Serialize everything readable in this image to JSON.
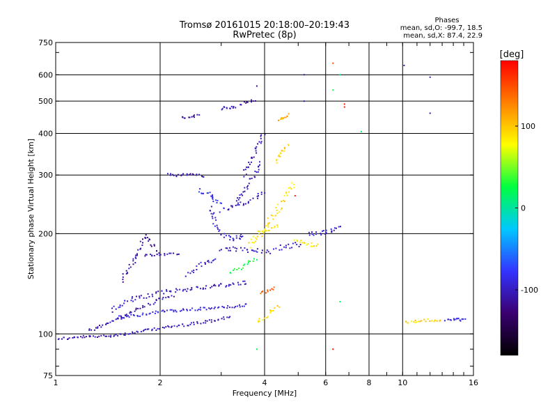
{
  "chart_data": {
    "type": "scatter",
    "title": "Tromsø 20161015 20:18:00–20:19:43",
    "subtitle": "RwPretec (8p)",
    "xlabel": "Frequency [MHz]",
    "ylabel": "Stationary phase Virtual Height [km]",
    "x_scale": "log",
    "y_scale": "log",
    "xlim": [
      1,
      16
    ],
    "ylim": [
      75,
      750
    ],
    "x_ticks": [
      1,
      2,
      4,
      6,
      8,
      10,
      16
    ],
    "x_tick_labels": [
      "1",
      "2",
      "4",
      "6",
      "8",
      "10",
      "16"
    ],
    "y_ticks": [
      75,
      100,
      200,
      300,
      400,
      500,
      600,
      750
    ],
    "y_tick_labels": [
      "75",
      "100",
      "200",
      "300",
      "400",
      "500",
      "600",
      "750"
    ],
    "grid": true,
    "phases_title": "Phases",
    "phase_stats": [
      "mean, sd,O: -99.7, 18.5",
      "mean, sd,X: 87.4, 22.9"
    ],
    "colorbar": {
      "label": "[deg]",
      "range": [
        -180,
        180
      ],
      "ticks": [
        100,
        0,
        -100
      ],
      "tick_labels": [
        "100",
        "0",
        "-100"
      ],
      "colors": [
        "#000000",
        "#3a0070",
        "#3333ff",
        "#00c8ff",
        "#00ff40",
        "#ffff00",
        "#ff8000",
        "#ff0000"
      ]
    },
    "traces": [
      {
        "x": [
          1.0,
          1.1,
          1.2,
          1.3,
          1.45,
          1.6,
          1.8,
          2.0,
          2.3,
          2.6,
          2.9,
          3.2
        ],
        "y": [
          97,
          97,
          98,
          98,
          99,
          100,
          102,
          104,
          106,
          108,
          110,
          113
        ],
        "phase": -105,
        "spread": 2
      },
      {
        "x": [
          1.45,
          1.55,
          1.7,
          1.85,
          2.0,
          2.2,
          2.5,
          2.8,
          3.1,
          3.4,
          3.6
        ],
        "y": [
          117,
          123,
          128,
          130,
          133,
          135,
          137,
          139,
          140,
          142,
          143
        ],
        "phase": -100,
        "spread": 3
      },
      {
        "x": [
          1.5,
          1.6,
          1.75,
          1.9,
          2.1,
          2.4,
          2.7,
          3.0,
          3.3,
          3.6
        ],
        "y": [
          112,
          113,
          114,
          116,
          117,
          118,
          119,
          120,
          121,
          122
        ],
        "phase": -90,
        "spread": 2
      },
      {
        "x": [
          1.25,
          1.4,
          1.55,
          1.7,
          1.9,
          2.0,
          2.2
        ],
        "y": [
          102,
          107,
          112,
          118,
          124,
          128,
          130
        ],
        "phase": -105,
        "spread": 2
      },
      {
        "x": [
          1.55,
          1.65,
          1.75,
          1.8,
          1.9,
          2.0
        ],
        "y": [
          145,
          160,
          180,
          198,
          185,
          175
        ],
        "phase": -110,
        "spread": 3
      },
      {
        "x": [
          1.8,
          1.9,
          2.0,
          2.1,
          2.3
        ],
        "y": [
          172,
          173,
          173,
          174,
          175
        ],
        "phase": -105,
        "spread": 2
      },
      {
        "x": [
          2.8,
          2.85,
          2.9,
          3.0,
          3.1,
          3.2,
          3.3,
          3.4,
          3.5
        ],
        "y": [
          240,
          225,
          210,
          200,
          195,
          193,
          194,
          195,
          198
        ],
        "phase": -95,
        "spread": 3
      },
      {
        "x": [
          2.6,
          2.7,
          2.8,
          2.85,
          2.9,
          3.0
        ],
        "y": [
          270,
          265,
          260,
          255,
          250,
          245
        ],
        "phase": -80,
        "spread": 3
      },
      {
        "x": [
          3.0,
          3.2,
          3.4,
          3.6,
          3.8,
          4.0
        ],
        "y": [
          235,
          240,
          245,
          250,
          258,
          270
        ],
        "phase": -100,
        "spread": 3
      },
      {
        "x": [
          3.3,
          3.4,
          3.5,
          3.6,
          3.7,
          3.8,
          3.9
        ],
        "y": [
          250,
          260,
          270,
          282,
          295,
          310,
          330
        ],
        "phase": -105,
        "spread": 3
      },
      {
        "x": [
          3.5,
          3.6,
          3.7,
          3.8,
          3.9,
          4.0
        ],
        "y": [
          300,
          320,
          340,
          360,
          380,
          400
        ],
        "phase": -110,
        "spread": 3
      },
      {
        "x": [
          3.0,
          3.2,
          3.4,
          3.6,
          3.8,
          4.0,
          4.2
        ],
        "y": [
          180,
          180,
          179,
          178,
          178,
          177,
          176
        ],
        "phase": -100,
        "spread": 3
      },
      {
        "x": [
          2.4,
          2.5,
          2.6,
          2.7,
          2.8,
          2.9
        ],
        "y": [
          150,
          155,
          160,
          163,
          166,
          170
        ],
        "phase": -95,
        "spread": 3
      },
      {
        "x": [
          2.3,
          2.4,
          2.5,
          2.6
        ],
        "y": [
          445,
          448,
          450,
          452
        ],
        "phase": -110,
        "spread": 2
      },
      {
        "x": [
          2.1,
          2.2,
          2.3,
          2.4,
          2.6,
          2.7
        ],
        "y": [
          300,
          300,
          300,
          301,
          300,
          298
        ],
        "phase": -105,
        "spread": 2
      },
      {
        "x": [
          3.9,
          4.0,
          4.1,
          4.3,
          4.5,
          4.7,
          4.9
        ],
        "y": [
          200,
          205,
          215,
          230,
          250,
          270,
          285
        ],
        "phase": 90,
        "spread": 4
      },
      {
        "x": [
          3.6,
          3.7,
          3.8,
          3.9,
          4.0,
          4.2,
          4.4
        ],
        "y": [
          185,
          190,
          195,
          200,
          205,
          210,
          212
        ],
        "phase": 85,
        "spread": 4
      },
      {
        "x": [
          4.3,
          4.4,
          4.5,
          4.6,
          4.7
        ],
        "y": [
          330,
          340,
          350,
          360,
          370
        ],
        "phase": 95,
        "spread": 3
      },
      {
        "x": [
          4.4,
          4.5,
          4.6,
          4.7
        ],
        "y": [
          440,
          445,
          450,
          460
        ],
        "phase": 110,
        "spread": 2
      },
      {
        "x": [
          4.9,
          5.1,
          5.3,
          5.5,
          5.7
        ],
        "y": [
          190,
          188,
          186,
          185,
          185
        ],
        "phase": 85,
        "spread": 3
      },
      {
        "x": [
          4.3,
          4.5,
          4.7,
          4.9,
          5.1
        ],
        "y": [
          180,
          182,
          183,
          185,
          186
        ],
        "phase": -100,
        "spread": 3
      },
      {
        "x": [
          5.4,
          5.6,
          5.8,
          6.0,
          6.2,
          6.4,
          6.6
        ],
        "y": [
          200,
          200,
          201,
          202,
          204,
          207,
          210
        ],
        "phase": -100,
        "spread": 3
      },
      {
        "x": [
          3.8,
          4.0,
          4.2,
          4.4
        ],
        "y": [
          108,
          112,
          117,
          122
        ],
        "phase": 95,
        "spread": 3
      },
      {
        "x": [
          3.9,
          4.1,
          4.3
        ],
        "y": [
          132,
          135,
          138
        ],
        "phase": 140,
        "spread": 2
      },
      {
        "x": [
          10.2,
          10.8,
          11.3,
          12.0,
          12.5,
          13.0
        ],
        "y": [
          108,
          109,
          110,
          110,
          110,
          110
        ],
        "phase": 95,
        "spread": 2
      },
      {
        "x": [
          13.3,
          13.8,
          14.3,
          14.7,
          15.2
        ],
        "y": [
          110,
          110,
          111,
          110,
          111
        ],
        "phase": -90,
        "spread": 2
      },
      {
        "x": [
          3.0,
          3.1,
          3.2,
          3.3
        ],
        "y": [
          475,
          478,
          480,
          482
        ],
        "phase": -100,
        "spread": 2
      },
      {
        "x": [
          3.4,
          3.6,
          3.8
        ],
        "y": [
          490,
          500,
          505
        ],
        "phase": -110,
        "spread": 2
      },
      {
        "x": [
          3.2,
          3.4,
          3.6,
          3.8
        ],
        "y": [
          152,
          158,
          165,
          170
        ],
        "phase": 30,
        "spread": 3
      }
    ],
    "points": [
      {
        "x": 6.8,
        "y": 480,
        "phase": 170
      },
      {
        "x": 6.8,
        "y": 490,
        "phase": 170
      },
      {
        "x": 6.6,
        "y": 600,
        "phase": 10
      },
      {
        "x": 6.3,
        "y": 650,
        "phase": 150
      },
      {
        "x": 6.3,
        "y": 540,
        "phase": 20
      },
      {
        "x": 10.1,
        "y": 640,
        "phase": -110
      },
      {
        "x": 12.0,
        "y": 590,
        "phase": -100
      },
      {
        "x": 12.0,
        "y": 460,
        "phase": -100
      },
      {
        "x": 7.6,
        "y": 405,
        "phase": 20
      },
      {
        "x": 6.3,
        "y": 90,
        "phase": 175
      },
      {
        "x": 6.6,
        "y": 125,
        "phase": 20
      },
      {
        "x": 5.2,
        "y": 600,
        "phase": -110
      },
      {
        "x": 5.2,
        "y": 500,
        "phase": -110
      },
      {
        "x": 3.8,
        "y": 555,
        "phase": -120
      },
      {
        "x": 4.9,
        "y": 260,
        "phase": 170
      },
      {
        "x": 3.8,
        "y": 90,
        "phase": 20
      }
    ]
  }
}
